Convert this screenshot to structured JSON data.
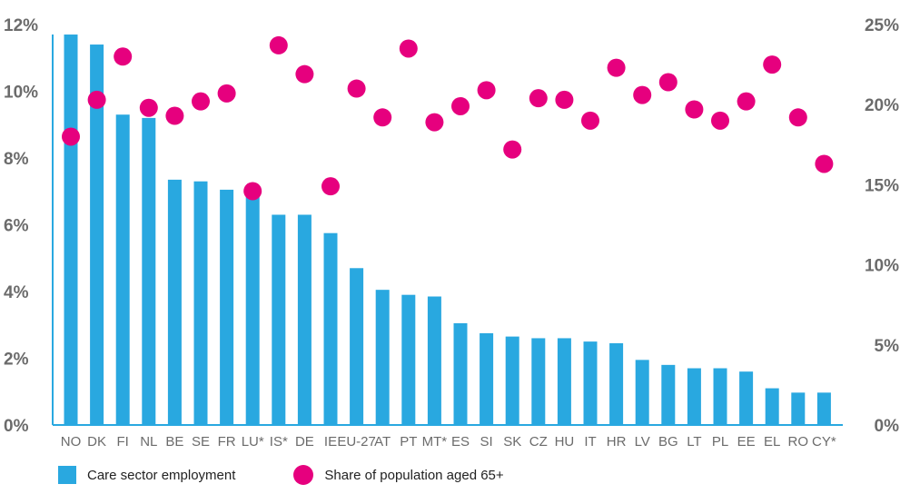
{
  "chart_data": {
    "type": "bar",
    "categories": [
      "NO",
      "DK",
      "FI",
      "NL",
      "BE",
      "SE",
      "FR",
      "LU*",
      "IS*",
      "DE",
      "IE",
      "EU-27",
      "AT",
      "PT",
      "MT*",
      "ES",
      "SI",
      "SK",
      "CZ",
      "HU",
      "IT",
      "HR",
      "LV",
      "BG",
      "LT",
      "PL",
      "EE",
      "EL",
      "RO",
      "CY*"
    ],
    "series": [
      {
        "name": "Care sector employment",
        "kind": "bar",
        "axis": "left",
        "color": "#29a8e0",
        "values": [
          11.7,
          11.4,
          9.3,
          9.2,
          7.35,
          7.3,
          7.05,
          7.0,
          6.3,
          6.3,
          5.75,
          4.7,
          4.05,
          3.9,
          3.85,
          3.05,
          2.75,
          2.65,
          2.6,
          2.6,
          2.5,
          2.45,
          1.95,
          1.8,
          1.7,
          1.7,
          1.6,
          1.1,
          0.97,
          0.97
        ]
      },
      {
        "name": "Share of population aged 65+",
        "kind": "dot",
        "axis": "right",
        "color": "#e6007e",
        "values": [
          18.0,
          20.3,
          23.0,
          19.8,
          19.3,
          20.2,
          20.7,
          14.6,
          23.7,
          21.9,
          14.9,
          21.0,
          19.2,
          23.5,
          18.9,
          19.9,
          20.9,
          17.2,
          20.4,
          20.3,
          19.0,
          22.3,
          20.6,
          21.4,
          19.7,
          19.0,
          20.2,
          22.5,
          19.2,
          16.3
        ]
      }
    ],
    "y_left": {
      "ylim": [
        0,
        12
      ],
      "ticks": [
        0,
        2,
        4,
        6,
        8,
        10,
        12
      ],
      "tick_labels": [
        "0%",
        "2%",
        "4%",
        "6%",
        "8%",
        "10%",
        "12%"
      ]
    },
    "y_right": {
      "ylim": [
        0,
        25
      ],
      "ticks": [
        0,
        5,
        10,
        15,
        20,
        25
      ],
      "tick_labels": [
        "0%",
        "5%",
        "10%",
        "15%",
        "20%",
        "25%"
      ]
    },
    "grid": false,
    "legend_position": "bottom-left",
    "legend": [
      {
        "label": "Care sector employment",
        "shape": "square",
        "color": "#29a8e0"
      },
      {
        "label": "Share of population aged 65+",
        "shape": "circle",
        "color": "#e6007e"
      }
    ],
    "axis_color": "#29a8e0"
  }
}
